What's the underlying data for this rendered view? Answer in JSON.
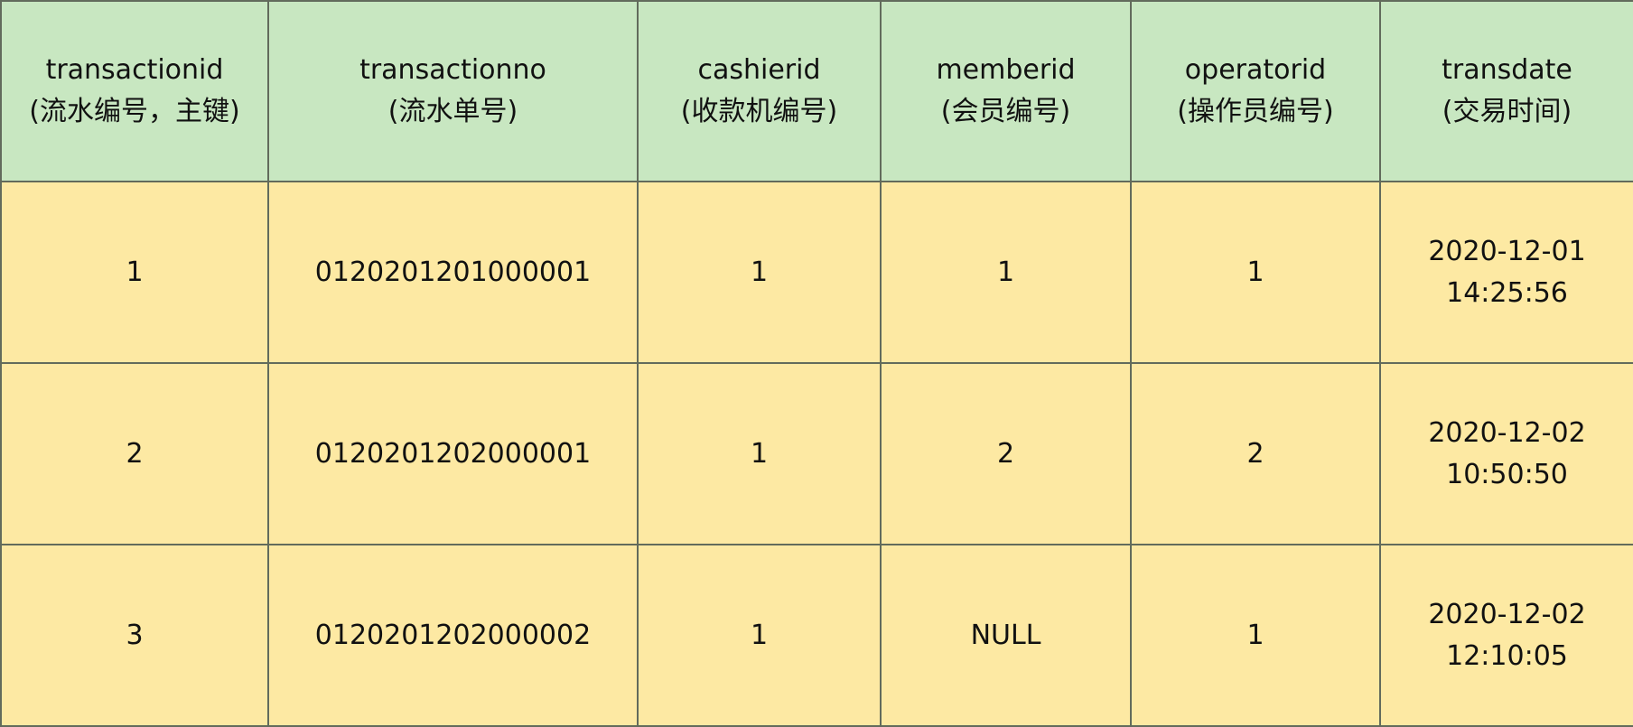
{
  "colors": {
    "header_bg": "#c8e7c1",
    "body_bg": "#fde9a3",
    "border": "#626b5c"
  },
  "columns": [
    {
      "name": "transactionid",
      "desc": "(流水编号，主键)"
    },
    {
      "name": "transactionno",
      "desc": "(流水单号)"
    },
    {
      "name": "cashierid",
      "desc": "(收款机编号)"
    },
    {
      "name": "memberid",
      "desc": "(会员编号)"
    },
    {
      "name": "operatorid",
      "desc": "(操作员编号)"
    },
    {
      "name": "transdate",
      "desc": "(交易时间)"
    }
  ],
  "rows": [
    {
      "transactionid": "1",
      "transactionno": "0120201201000001",
      "cashierid": "1",
      "memberid": "1",
      "operatorid": "1",
      "date": "2020-12-01",
      "time": "14:25:56"
    },
    {
      "transactionid": "2",
      "transactionno": "0120201202000001",
      "cashierid": "1",
      "memberid": "2",
      "operatorid": "2",
      "date": "2020-12-02",
      "time": "10:50:50"
    },
    {
      "transactionid": "3",
      "transactionno": "0120201202000002",
      "cashierid": "1",
      "memberid": "NULL",
      "operatorid": "1",
      "date": "2020-12-02",
      "time": "12:10:05"
    }
  ]
}
